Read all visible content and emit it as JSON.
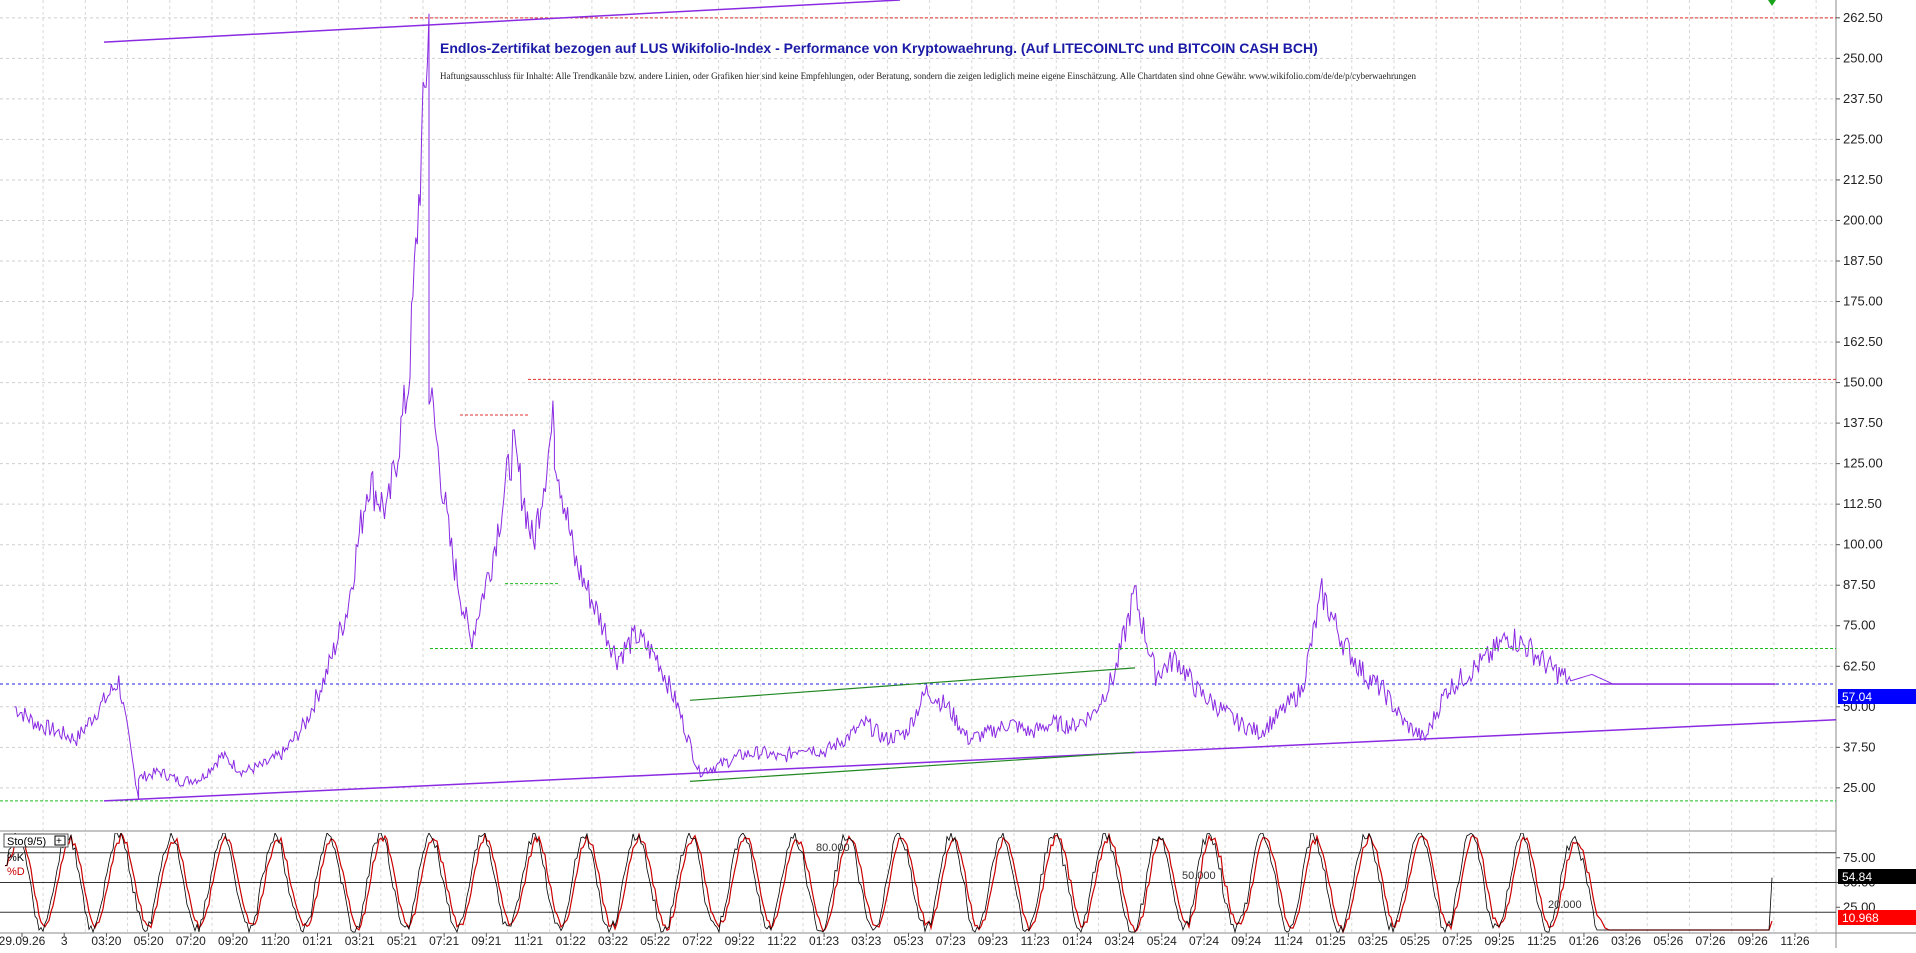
{
  "chart_data": [
    {
      "type": "line",
      "title": "Endlos-Zertifikat bezogen auf LUS Wikifolio-Index - Performance von Kryptowaehrung. (Auf LITECOINLTC und BITCOIN CASH BCH)",
      "subtitle": "Haftungsausschluss für Inhalte: Alle Trendkanäle bzw. andere Linien, oder Grafiken hier sind keine Empfehlungen, oder Beratung, sondern die zeigen lediglich meine eigene Einschätzung. Alle Chartdaten sind ohne Gewähr.  www.wikifolio.com/de/de/p/cyberwaehrungen",
      "ylim": [
        12,
        268
      ],
      "y_ticks": [
        "262.50",
        "250.00",
        "237.50",
        "225.00",
        "212.50",
        "200.00",
        "187.50",
        "175.00",
        "162.50",
        "150.00",
        "137.50",
        "125.00",
        "112.50",
        "100.00",
        "87.50",
        "75.00",
        "62.50",
        "50.00",
        "37.50",
        "25.00"
      ],
      "last_value_label": "57.04",
      "grid": true,
      "series": [
        {
          "color": "#8a2be2",
          "x": [
            "2019-09",
            "2019-10",
            "2019-12",
            "2020-02",
            "2020-03",
            "2020-03",
            "2020-04",
            "2020-05",
            "2020-06",
            "2020-07",
            "2020-08",
            "2020-09",
            "2020-10",
            "2020-11",
            "2020-12",
            "2021-01",
            "2021-02",
            "2021-03",
            "2021-04",
            "2021-05",
            "2021-05",
            "2021-06",
            "2021-07",
            "2021-08",
            "2021-09",
            "2021-10",
            "2021-11",
            "2021-11",
            "2021-12",
            "2022-01",
            "2022-02",
            "2022-03",
            "2022-04",
            "2022-05",
            "2022-06",
            "2022-07",
            "2022-08",
            "2022-09",
            "2022-10",
            "2022-11",
            "2022-12",
            "2023-01",
            "2023-02",
            "2023-03",
            "2023-04",
            "2023-05",
            "2023-06",
            "2023-07",
            "2023-08",
            "2023-09",
            "2023-10",
            "2023-11",
            "2023-12",
            "2024-01",
            "2024-02",
            "2024-03",
            "2024-04",
            "2024-05",
            "2024-06",
            "2024-07",
            "2024-08",
            "2024-09",
            "2024-10",
            "2024-11",
            "2024-12",
            "2025-01",
            "2025-02",
            "2025-03",
            "2025-04",
            "2025-05",
            "2025-06",
            "2025-07",
            "2025-08",
            "2025-09",
            "2025-10",
            "2025-11",
            "2025-12",
            "2026-01",
            "2026-02",
            "2026-04",
            "2026-06",
            "2026-08",
            "2026-10"
          ],
          "values": [
            50,
            45,
            40,
            58,
            22,
            28,
            30,
            27,
            28,
            35,
            30,
            32,
            36,
            45,
            60,
            80,
            120,
            110,
            150,
            262,
            150,
            100,
            70,
            95,
            130,
            100,
            140,
            130,
            95,
            80,
            65,
            72,
            65,
            50,
            30,
            32,
            35,
            36,
            34,
            38,
            36,
            40,
            45,
            40,
            42,
            55,
            50,
            40,
            42,
            45,
            42,
            45,
            44,
            48,
            60,
            85,
            60,
            65,
            55,
            50,
            45,
            42,
            48,
            55,
            85,
            70,
            60,
            55,
            45,
            40,
            55,
            60,
            65,
            72,
            68,
            62,
            58,
            60,
            57,
            57,
            57,
            57,
            57
          ]
        }
      ],
      "annotations": [
        "80.000",
        "50.000",
        "20.000"
      ]
    },
    {
      "type": "line",
      "title": "Sto(9/5)",
      "ylim": [
        0,
        100
      ],
      "y_ticks": [
        "75.00",
        "50.00",
        "25.00"
      ],
      "legend": [
        "%K",
        "%D"
      ],
      "last_values": [
        "54.84",
        "10.968"
      ],
      "levels": [
        80,
        50,
        20
      ],
      "series": [
        {
          "name": "%K",
          "color": "#000000"
        },
        {
          "name": "%D",
          "color": "#cc0000"
        }
      ]
    }
  ],
  "x_ticks": [
    "29.09.26",
    "3",
    "03:20",
    "05:20",
    "07:20",
    "09:20",
    "11:20",
    "01:21",
    "03:21",
    "05:21",
    "07:21",
    "09:21",
    "11:21",
    "01:22",
    "03:22",
    "05:22",
    "07:22",
    "09:22",
    "11:22",
    "01:23",
    "03:23",
    "05:23",
    "07:23",
    "09:23",
    "11:23",
    "01:24",
    "03:24",
    "05:24",
    "07:24",
    "09:24",
    "11:24",
    "01:25",
    "03:25",
    "05:25",
    "07:25",
    "09:25",
    "11:25",
    "01:26",
    "03:26",
    "05:26",
    "07:26",
    "09:26",
    "11:26"
  ],
  "colors": {
    "accent_label_bg": "#0000ff",
    "k_label_bg": "#000000",
    "d_label_bg": "#ff0000"
  }
}
